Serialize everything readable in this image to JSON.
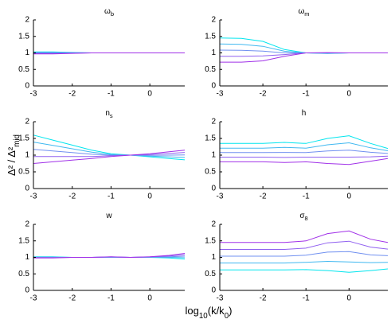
{
  "figure": {
    "ylabel": {
      "main": "Δ² / Δ²",
      "sub": "mid"
    },
    "xlabel": [
      {
        "main": "log",
        "sub": "10"
      },
      {
        "main": "(k/k",
        "sub": "0"
      },
      {
        "main": ")"
      }
    ]
  },
  "chart_data": [
    {
      "type": "line",
      "title": {
        "main": "ω",
        "sub": "b"
      },
      "x": [
        -3,
        -2.5,
        -2,
        -1.5,
        -1,
        -0.5,
        0,
        0.5,
        0.9
      ],
      "xlim": [
        -3,
        0.9
      ],
      "ylim": [
        0,
        2
      ],
      "xticks": [
        -3,
        -2,
        -1,
        0
      ],
      "yticks": [
        0,
        0.5,
        1,
        1.5,
        2
      ],
      "series": [
        {
          "color": "#00e5ee",
          "values": [
            1.03,
            1.03,
            1.015,
            1,
            1,
            1,
            1,
            1,
            1
          ]
        },
        {
          "color": "#40b8f0",
          "values": [
            1.015,
            1.015,
            1.008,
            1,
            1,
            1,
            1,
            1,
            1
          ]
        },
        {
          "color": "#7090f0",
          "values": [
            1,
            1,
            1,
            1,
            1,
            1,
            1,
            1,
            1
          ]
        },
        {
          "color": "#9060f0",
          "values": [
            0.985,
            0.985,
            0.992,
            1,
            1,
            1,
            1,
            1,
            1
          ]
        },
        {
          "color": "#a030e8",
          "values": [
            0.97,
            0.97,
            0.985,
            1,
            1,
            1,
            1,
            1,
            1
          ]
        }
      ]
    },
    {
      "type": "line",
      "title": {
        "main": "ω",
        "sub": "m"
      },
      "x": [
        -3,
        -2.5,
        -2,
        -1.5,
        -1,
        -0.5,
        0,
        0.5,
        0.9
      ],
      "xlim": [
        -3,
        0.9
      ],
      "ylim": [
        0,
        2
      ],
      "xticks": [
        -3,
        -2,
        -1,
        0
      ],
      "yticks": [
        0,
        0.5,
        1,
        1.5,
        2
      ],
      "series": [
        {
          "color": "#00e5ee",
          "values": [
            1.45,
            1.44,
            1.35,
            1.1,
            1.0,
            0.98,
            1.0,
            1.0,
            1.0
          ]
        },
        {
          "color": "#40b8f0",
          "values": [
            1.27,
            1.26,
            1.2,
            1.05,
            1,
            0.99,
            1,
            1,
            1
          ]
        },
        {
          "color": "#7090f0",
          "values": [
            1.085,
            1.08,
            1.055,
            1.0,
            1.0,
            0.995,
            1,
            1,
            1
          ]
        },
        {
          "color": "#9060f0",
          "values": [
            0.9,
            0.9,
            0.91,
            0.95,
            1,
            1.0,
            1,
            1,
            1
          ]
        },
        {
          "color": "#a030e8",
          "values": [
            0.72,
            0.72,
            0.76,
            0.9,
            1.0,
            1.01,
            1.0,
            1.0,
            1.0
          ]
        }
      ]
    },
    {
      "type": "line",
      "title": {
        "main": "n",
        "sub": "s"
      },
      "x": [
        -3,
        -2.5,
        -2,
        -1.5,
        -1,
        -0.5,
        0,
        0.5,
        0.9
      ],
      "xlim": [
        -3,
        0.9
      ],
      "ylim": [
        0,
        2
      ],
      "xticks": [
        -3,
        -2,
        -1,
        0
      ],
      "yticks": [
        0,
        0.5,
        1,
        1.5,
        2
      ],
      "series": [
        {
          "color": "#00e5ee",
          "values": [
            1.6,
            1.45,
            1.3,
            1.15,
            1.04,
            1.0,
            0.95,
            0.9,
            0.86
          ]
        },
        {
          "color": "#40b8f0",
          "values": [
            1.39,
            1.29,
            1.19,
            1.09,
            1.02,
            1,
            0.97,
            0.95,
            0.93
          ]
        },
        {
          "color": "#7090f0",
          "values": [
            1.175,
            1.125,
            1.075,
            1.025,
            1.0,
            1.0,
            0.995,
            1.0,
            1.005
          ]
        },
        {
          "color": "#9060f0",
          "values": [
            0.96,
            0.96,
            0.96,
            0.96,
            0.98,
            1,
            1.02,
            1.05,
            1.08
          ]
        },
        {
          "color": "#a030e8",
          "values": [
            0.75,
            0.8,
            0.85,
            0.9,
            0.96,
            1.0,
            1.04,
            1.1,
            1.15
          ]
        }
      ]
    },
    {
      "type": "line",
      "title": {
        "main": "h"
      },
      "x": [
        -3,
        -2.5,
        -2,
        -1.5,
        -1,
        -0.5,
        0,
        0.5,
        0.9
      ],
      "xlim": [
        -3,
        0.9
      ],
      "ylim": [
        0,
        2
      ],
      "xticks": [
        -3,
        -2,
        -1,
        0
      ],
      "yticks": [
        0,
        0.5,
        1,
        1.5,
        2
      ],
      "series": [
        {
          "color": "#00e5ee",
          "values": [
            1.35,
            1.35,
            1.35,
            1.38,
            1.35,
            1.5,
            1.58,
            1.35,
            1.2
          ]
        },
        {
          "color": "#40b8f0",
          "values": [
            1.21,
            1.21,
            1.21,
            1.23,
            1.21,
            1.31,
            1.37,
            1.22,
            1.13
          ]
        },
        {
          "color": "#7090f0",
          "values": [
            1.075,
            1.075,
            1.075,
            1.08,
            1.075,
            1.125,
            1.15,
            1.085,
            1.05
          ]
        },
        {
          "color": "#9060f0",
          "values": [
            0.94,
            0.94,
            0.94,
            0.93,
            0.94,
            0.94,
            0.94,
            0.95,
            0.97
          ]
        },
        {
          "color": "#a030e8",
          "values": [
            0.8,
            0.8,
            0.8,
            0.78,
            0.8,
            0.75,
            0.72,
            0.82,
            0.9
          ]
        }
      ]
    },
    {
      "type": "line",
      "title": {
        "main": "w"
      },
      "x": [
        -3,
        -2.5,
        -2,
        -1.5,
        -1,
        -0.5,
        0,
        0.5,
        0.9
      ],
      "xlim": [
        -3,
        0.9
      ],
      "ylim": [
        0,
        2
      ],
      "xticks": [
        -3,
        -2,
        -1,
        0
      ],
      "yticks": [
        0,
        0.5,
        1,
        1.5,
        2
      ],
      "series": [
        {
          "color": "#00e5ee",
          "values": [
            1.02,
            1.02,
            1.0,
            1.0,
            1.0,
            1.0,
            1.0,
            0.98,
            0.95
          ]
        },
        {
          "color": "#40b8f0",
          "values": [
            1.01,
            1.01,
            1,
            1,
            1.005,
            1,
            1.005,
            1,
            0.99
          ]
        },
        {
          "color": "#7090f0",
          "values": [
            1,
            1,
            1,
            1,
            1.01,
            1,
            1.01,
            1.02,
            1.035
          ]
        },
        {
          "color": "#9060f0",
          "values": [
            0.99,
            0.99,
            1,
            1,
            1.015,
            1,
            1.015,
            1.04,
            1.08
          ]
        },
        {
          "color": "#a030e8",
          "values": [
            0.98,
            0.98,
            1.0,
            1.0,
            1.02,
            1.0,
            1.02,
            1.06,
            1.12
          ]
        }
      ]
    },
    {
      "type": "line",
      "title": {
        "main": "σ",
        "sub": "8"
      },
      "x": [
        -3,
        -2.5,
        -2,
        -1.5,
        -1,
        -0.5,
        0,
        0.5,
        0.9
      ],
      "xlim": [
        -3,
        0.9
      ],
      "ylim": [
        0,
        2
      ],
      "xticks": [
        -3,
        -2,
        -1,
        0
      ],
      "yticks": [
        0,
        0.5,
        1,
        1.5,
        2
      ],
      "series": [
        {
          "color": "#00e5ee",
          "values": [
            0.62,
            0.62,
            0.62,
            0.62,
            0.63,
            0.6,
            0.55,
            0.6,
            0.65
          ]
        },
        {
          "color": "#40b8f0",
          "values": [
            0.83,
            0.83,
            0.83,
            0.83,
            0.85,
            0.88,
            0.86,
            0.84,
            0.85
          ]
        },
        {
          "color": "#7090f0",
          "values": [
            1.035,
            1.035,
            1.035,
            1.035,
            1.065,
            1.16,
            1.175,
            1.075,
            1.05
          ]
        },
        {
          "color": "#9060f0",
          "values": [
            1.24,
            1.24,
            1.24,
            1.24,
            1.28,
            1.44,
            1.49,
            1.31,
            1.25
          ]
        },
        {
          "color": "#a030e8",
          "values": [
            1.45,
            1.45,
            1.45,
            1.45,
            1.5,
            1.72,
            1.8,
            1.55,
            1.45
          ]
        }
      ]
    }
  ]
}
